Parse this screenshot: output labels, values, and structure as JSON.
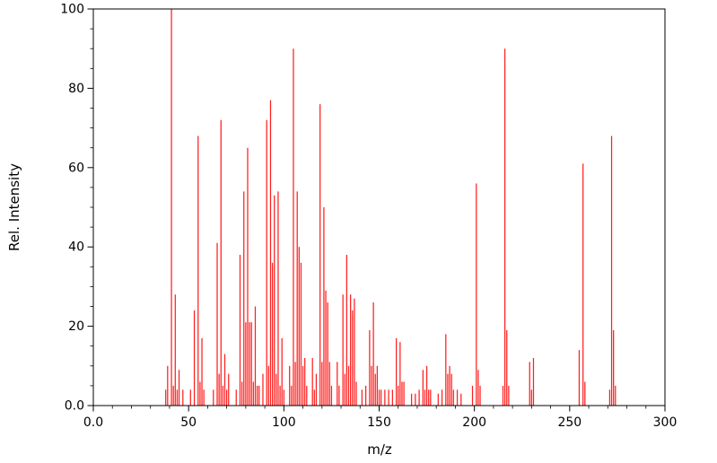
{
  "chart_data": {
    "type": "bar",
    "subtype": "mass-spectrum-stick-plot",
    "title": "",
    "xlabel": "m/z",
    "ylabel": "Rel. Intensity",
    "xlim": [
      0,
      300
    ],
    "ylim": [
      0,
      100
    ],
    "grid": false,
    "legend": false,
    "bar_color": "#ff1f1f",
    "axis_color": "#000000",
    "text_color": "#000000",
    "background_color": "#ffffff",
    "xticks": {
      "values": [
        0,
        50,
        100,
        150,
        200,
        250,
        300
      ],
      "labels": [
        "0.0",
        "50",
        "100",
        "150",
        "200",
        "250",
        "300"
      ]
    },
    "yticks": {
      "values": [
        0,
        20,
        40,
        60,
        80,
        100
      ],
      "labels": [
        "0.0",
        "20",
        "40",
        "60",
        "80",
        "100"
      ]
    },
    "xtick_minor_step": 10,
    "ytick_minor_step": 5,
    "peaks": [
      [
        38,
        4
      ],
      [
        39,
        10
      ],
      [
        41,
        100
      ],
      [
        42,
        5
      ],
      [
        43,
        28
      ],
      [
        44,
        4
      ],
      [
        45,
        9
      ],
      [
        47,
        4
      ],
      [
        51,
        4
      ],
      [
        53,
        24
      ],
      [
        55,
        68
      ],
      [
        56,
        6
      ],
      [
        57,
        17
      ],
      [
        58,
        4
      ],
      [
        63,
        4
      ],
      [
        65,
        41
      ],
      [
        66,
        8
      ],
      [
        67,
        72
      ],
      [
        68,
        5
      ],
      [
        69,
        13
      ],
      [
        70,
        4
      ],
      [
        71,
        8
      ],
      [
        75,
        4
      ],
      [
        77,
        38
      ],
      [
        78,
        6
      ],
      [
        79,
        54
      ],
      [
        80,
        21
      ],
      [
        81,
        65
      ],
      [
        82,
        21
      ],
      [
        83,
        21
      ],
      [
        84,
        6
      ],
      [
        85,
        25
      ],
      [
        86,
        5
      ],
      [
        87,
        5
      ],
      [
        89,
        8
      ],
      [
        91,
        72
      ],
      [
        92,
        10
      ],
      [
        93,
        77
      ],
      [
        94,
        36
      ],
      [
        95,
        53
      ],
      [
        96,
        8
      ],
      [
        97,
        54
      ],
      [
        98,
        5
      ],
      [
        99,
        17
      ],
      [
        100,
        4
      ],
      [
        103,
        10
      ],
      [
        104,
        5
      ],
      [
        105,
        90
      ],
      [
        106,
        11
      ],
      [
        107,
        54
      ],
      [
        108,
        40
      ],
      [
        109,
        36
      ],
      [
        110,
        10
      ],
      [
        111,
        12
      ],
      [
        112,
        5
      ],
      [
        115,
        12
      ],
      [
        116,
        4
      ],
      [
        117,
        8
      ],
      [
        119,
        76
      ],
      [
        120,
        11
      ],
      [
        121,
        50
      ],
      [
        122,
        29
      ],
      [
        123,
        26
      ],
      [
        124,
        11
      ],
      [
        125,
        5
      ],
      [
        128,
        11
      ],
      [
        129,
        5
      ],
      [
        131,
        28
      ],
      [
        132,
        8
      ],
      [
        133,
        38
      ],
      [
        134,
        10
      ],
      [
        135,
        28
      ],
      [
        136,
        24
      ],
      [
        137,
        27
      ],
      [
        138,
        6
      ],
      [
        141,
        4
      ],
      [
        143,
        5
      ],
      [
        145,
        19
      ],
      [
        146,
        10
      ],
      [
        147,
        26
      ],
      [
        148,
        8
      ],
      [
        149,
        10
      ],
      [
        150,
        4
      ],
      [
        151,
        4
      ],
      [
        153,
        4
      ],
      [
        155,
        4
      ],
      [
        157,
        4
      ],
      [
        159,
        17
      ],
      [
        160,
        5
      ],
      [
        161,
        16
      ],
      [
        162,
        6
      ],
      [
        163,
        6
      ],
      [
        167,
        3
      ],
      [
        169,
        3
      ],
      [
        171,
        4
      ],
      [
        173,
        9
      ],
      [
        174,
        4
      ],
      [
        175,
        10
      ],
      [
        176,
        4
      ],
      [
        177,
        4
      ],
      [
        181,
        3
      ],
      [
        183,
        4
      ],
      [
        185,
        18
      ],
      [
        186,
        8
      ],
      [
        187,
        10
      ],
      [
        188,
        8
      ],
      [
        189,
        4
      ],
      [
        191,
        4
      ],
      [
        193,
        3
      ],
      [
        199,
        5
      ],
      [
        201,
        56
      ],
      [
        202,
        9
      ],
      [
        203,
        5
      ],
      [
        215,
        5
      ],
      [
        216,
        90
      ],
      [
        217,
        19
      ],
      [
        218,
        5
      ],
      [
        229,
        11
      ],
      [
        230,
        4
      ],
      [
        231,
        12
      ],
      [
        255,
        14
      ],
      [
        257,
        61
      ],
      [
        258,
        6
      ],
      [
        271,
        4
      ],
      [
        272,
        68
      ],
      [
        273,
        19
      ],
      [
        274,
        5
      ]
    ]
  }
}
